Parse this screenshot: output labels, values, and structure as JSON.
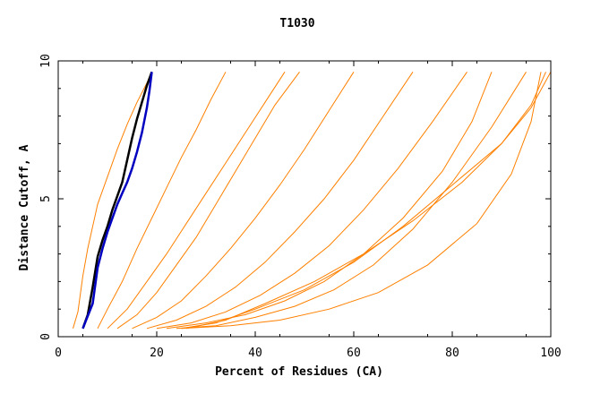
{
  "chart_data": {
    "type": "line",
    "title": "T1030",
    "xlabel": "Percent of Residues (CA)",
    "ylabel": "Distance Cutoff, A",
    "xlim": [
      0,
      100
    ],
    "ylim": [
      0,
      10
    ],
    "x_ticks": [
      0,
      20,
      40,
      60,
      80,
      100
    ],
    "y_ticks": [
      0,
      5,
      10
    ],
    "grid": false,
    "colors": {
      "bulk": "#ff8000",
      "highlight_1": "#000000",
      "highlight_2": "#0000c0"
    },
    "series": [
      {
        "color": "#000000",
        "x": [
          5,
          6,
          7,
          8,
          9,
          10,
          11,
          12,
          13,
          14,
          15,
          16,
          17,
          18,
          19
        ],
        "y": [
          0.3,
          0.8,
          1.8,
          2.9,
          3.5,
          4.0,
          4.6,
          5.1,
          5.6,
          6.4,
          7.2,
          7.9,
          8.5,
          9.1,
          9.6
        ]
      },
      {
        "color": "#0000c0",
        "x": [
          5,
          7,
          8,
          9,
          10,
          11,
          12,
          13,
          14,
          15,
          16,
          17,
          18,
          18.5,
          19
        ],
        "y": [
          0.3,
          1.2,
          2.5,
          3.2,
          3.8,
          4.3,
          4.8,
          5.2,
          5.6,
          6.1,
          6.7,
          7.4,
          8.3,
          8.9,
          9.6
        ]
      },
      {
        "color": "#ff8000",
        "x": [
          3,
          4,
          5,
          6,
          7,
          8,
          10,
          12,
          14,
          16,
          18,
          19
        ],
        "y": [
          0.3,
          0.9,
          2.2,
          3.2,
          4.0,
          4.8,
          5.8,
          6.8,
          7.7,
          8.5,
          9.2,
          9.6
        ]
      },
      {
        "color": "#ff8000",
        "x": [
          8,
          10,
          13,
          16,
          19,
          22,
          25,
          28,
          31,
          34
        ],
        "y": [
          0.3,
          1.0,
          2.0,
          3.2,
          4.3,
          5.4,
          6.5,
          7.5,
          8.6,
          9.6
        ]
      },
      {
        "color": "#ff8000",
        "x": [
          10,
          14,
          18,
          22,
          26,
          30,
          34,
          38,
          42,
          46
        ],
        "y": [
          0.3,
          1.0,
          2.0,
          3.0,
          4.1,
          5.2,
          6.3,
          7.4,
          8.5,
          9.6
        ]
      },
      {
        "color": "#ff8000",
        "x": [
          12,
          16,
          20,
          24,
          28,
          32,
          36,
          40,
          44,
          49
        ],
        "y": [
          0.3,
          0.8,
          1.6,
          2.6,
          3.6,
          4.8,
          6.0,
          7.2,
          8.4,
          9.6
        ]
      },
      {
        "color": "#ff8000",
        "x": [
          15,
          20,
          25,
          30,
          35,
          40,
          45,
          50,
          55,
          60
        ],
        "y": [
          0.3,
          0.7,
          1.3,
          2.2,
          3.2,
          4.3,
          5.5,
          6.8,
          8.2,
          9.6
        ]
      },
      {
        "color": "#ff8000",
        "x": [
          18,
          24,
          30,
          36,
          42,
          48,
          54,
          60,
          66,
          72
        ],
        "y": [
          0.3,
          0.6,
          1.1,
          1.8,
          2.7,
          3.8,
          5.0,
          6.4,
          8.0,
          9.6
        ]
      },
      {
        "color": "#ff8000",
        "x": [
          20,
          27,
          34,
          41,
          48,
          55,
          62,
          69,
          76,
          83
        ],
        "y": [
          0.3,
          0.5,
          0.9,
          1.5,
          2.3,
          3.3,
          4.6,
          6.1,
          7.8,
          9.6
        ]
      },
      {
        "color": "#ff8000",
        "x": [
          22,
          30,
          38,
          46,
          54,
          62,
          70,
          78,
          84,
          88
        ],
        "y": [
          0.3,
          0.5,
          0.8,
          1.3,
          2.0,
          3.0,
          4.3,
          6.0,
          7.8,
          9.6
        ]
      },
      {
        "color": "#ff8000",
        "x": [
          24,
          32,
          40,
          48,
          56,
          64,
          72,
          80,
          88,
          95
        ],
        "y": [
          0.3,
          0.4,
          0.7,
          1.1,
          1.7,
          2.6,
          3.9,
          5.6,
          7.6,
          9.6
        ]
      },
      {
        "color": "#ff8000",
        "x": [
          25,
          35,
          45,
          55,
          65,
          75,
          85,
          92,
          96,
          98
        ],
        "y": [
          0.3,
          0.4,
          0.6,
          1.0,
          1.6,
          2.6,
          4.1,
          5.9,
          7.8,
          9.6
        ]
      },
      {
        "color": "#ff8000",
        "x": [
          25,
          32,
          40,
          50,
          60,
          70,
          80,
          90,
          96,
          99
        ],
        "y": [
          0.3,
          0.5,
          1.0,
          1.7,
          2.7,
          4.0,
          5.5,
          7.0,
          8.4,
          9.6
        ]
      },
      {
        "color": "#ff8000",
        "x": [
          26,
          34,
          42,
          52,
          62,
          72,
          82,
          90,
          96,
          100
        ],
        "y": [
          0.3,
          0.6,
          1.2,
          2.0,
          3.0,
          4.2,
          5.6,
          7.0,
          8.3,
          9.6
        ]
      }
    ]
  }
}
